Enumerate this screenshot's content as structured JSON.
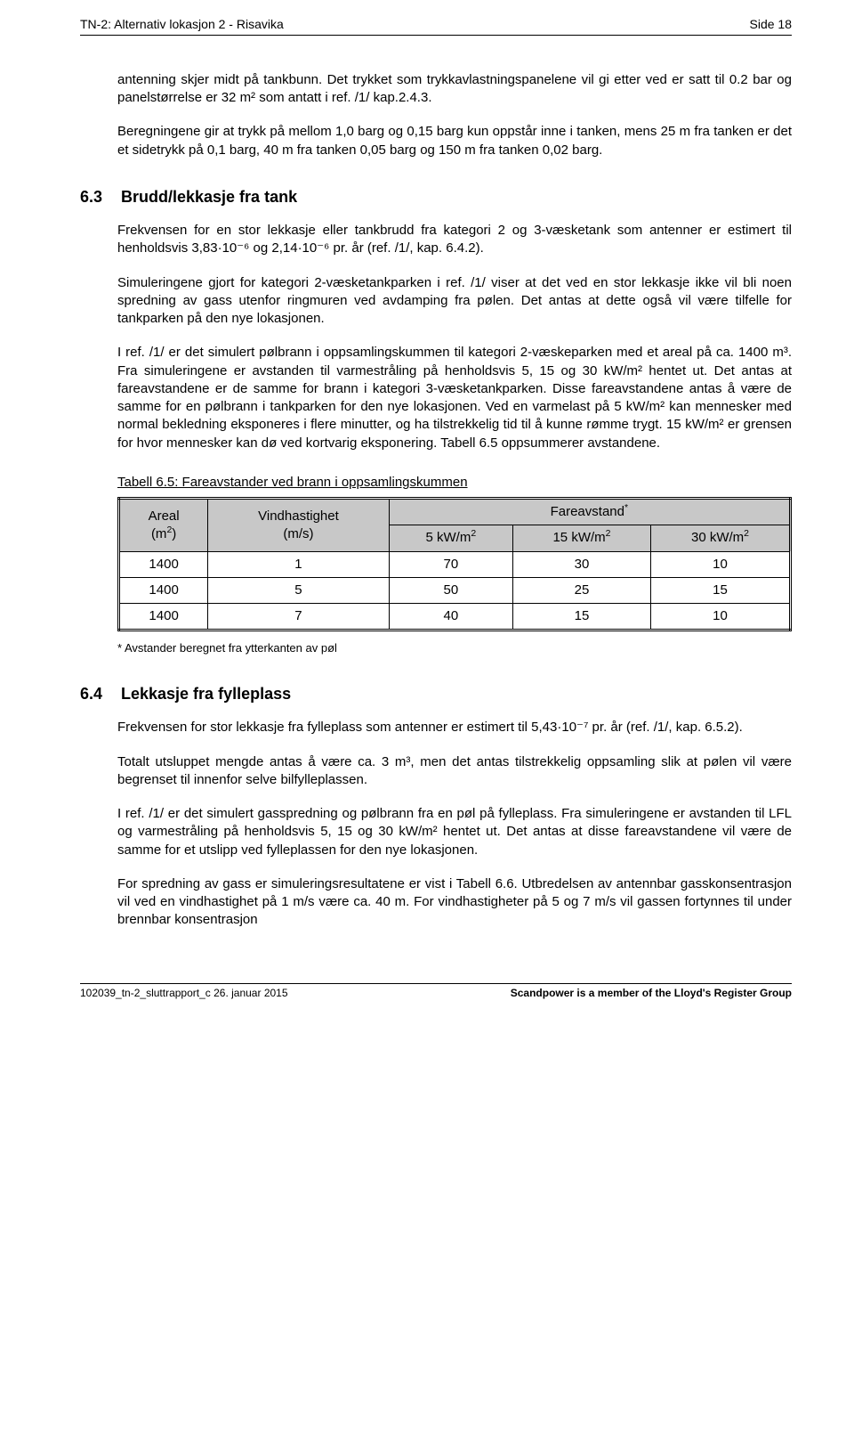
{
  "header": {
    "left": "TN-2:  Alternativ lokasjon 2 - Risavika",
    "right": "Side 18"
  },
  "intro": {
    "p1": "antenning skjer midt på tankbunn. Det trykket som trykkavlastningspanelene vil gi etter ved er satt til 0.2 bar og panelstørrelse er 32 m² som antatt i ref. /1/ kap.2.4.3.",
    "p2": "Beregningene gir at trykk på mellom 1,0 barg og 0,15 barg kun oppstår inne i tanken, mens 25 m fra tanken er det et sidetrykk på 0,1 barg, 40 m fra tanken 0,05 barg og 150 m fra tanken 0,02 barg."
  },
  "section63": {
    "num": "6.3",
    "title": "Brudd/lekkasje fra tank",
    "p1": "Frekvensen for en stor lekkasje eller tankbrudd fra kategori 2 og 3-væsketank som antenner er estimert til henholdsvis 3,83·10⁻⁶ og 2,14·10⁻⁶ pr. år (ref. /1/, kap. 6.4.2).",
    "p2": "Simuleringene gjort for kategori 2-væsketankparken i ref. /1/ viser at det ved en stor lekkasje ikke vil bli noen spredning av gass utenfor ringmuren ved avdamping fra pølen. Det antas at dette også vil være tilfelle for tankparken på den nye lokasjonen.",
    "p3": "I ref. /1/ er det simulert pølbrann i oppsamlingskummen til kategori 2-væskeparken med et areal på ca. 1400 m³. Fra simuleringene er avstanden til varmestråling på henholdsvis 5, 15 og 30 kW/m² hentet ut. Det antas at fareavstandene er de samme for brann i kategori 3-væsketankparken. Disse fareavstandene antas å være de samme for en pølbrann i tankparken for den nye lokasjonen. Ved en varmelast på 5 kW/m² kan mennesker med normal bekledning eksponeres i flere minutter, og ha tilstrekkelig tid til å kunne rømme trygt. 15 kW/m² er grensen for hvor mennesker kan dø ved kortvarig eksponering. Tabell 6.5 oppsummerer avstandene."
  },
  "table": {
    "caption": "Tabell 6.5:  Fareavstander ved brann i oppsamlingskummen",
    "head": {
      "areal": "Areal (m²)",
      "vind": "Vindhastighet (m/s)",
      "fare": "Fareavstand*",
      "c5": "5 kW/m²",
      "c15": "15 kW/m²",
      "c30": "30 kW/m²"
    },
    "rows": [
      {
        "a": "1400",
        "v": "1",
        "c5": "70",
        "c15": "30",
        "c30": "10"
      },
      {
        "a": "1400",
        "v": "5",
        "c5": "50",
        "c15": "25",
        "c30": "15"
      },
      {
        "a": "1400",
        "v": "7",
        "c5": "40",
        "c15": "15",
        "c30": "10"
      }
    ],
    "footnote": "*    Avstander beregnet fra ytterkanten av pøl"
  },
  "section64": {
    "num": "6.4",
    "title": "Lekkasje fra fylleplass",
    "p1": "Frekvensen for stor lekkasje fra fylleplass som antenner er estimert til 5,43·10⁻⁷ pr. år (ref. /1/, kap. 6.5.2).",
    "p2": "Totalt utsluppet mengde antas å være ca. 3 m³, men det antas tilstrekkelig oppsamling slik at pølen vil være begrenset til innenfor selve bilfylleplassen.",
    "p3": "I ref. /1/ er det simulert gasspredning og pølbrann fra en pøl på fylleplass. Fra simuleringene er avstanden til LFL og varmestråling på henholdsvis 5, 15 og 30 kW/m² hentet ut. Det antas at disse fareavstandene vil være de samme for et utslipp ved fylleplassen for den nye lokasjonen.",
    "p4": "For spredning av gass er simuleringsresultatene er vist i Tabell 6.6. Utbredelsen av antennbar gasskonsentrasjon vil ved en vindhastighet på 1 m/s være ca. 40 m. For vindhastigheter på 5 og 7 m/s vil gassen fortynnes til under brennbar konsentrasjon"
  },
  "footer": {
    "left": "102039_tn-2_sluttrapport_c  26. januar 2015",
    "right": "Scandpower is a member of the Lloyd's Register Group"
  }
}
